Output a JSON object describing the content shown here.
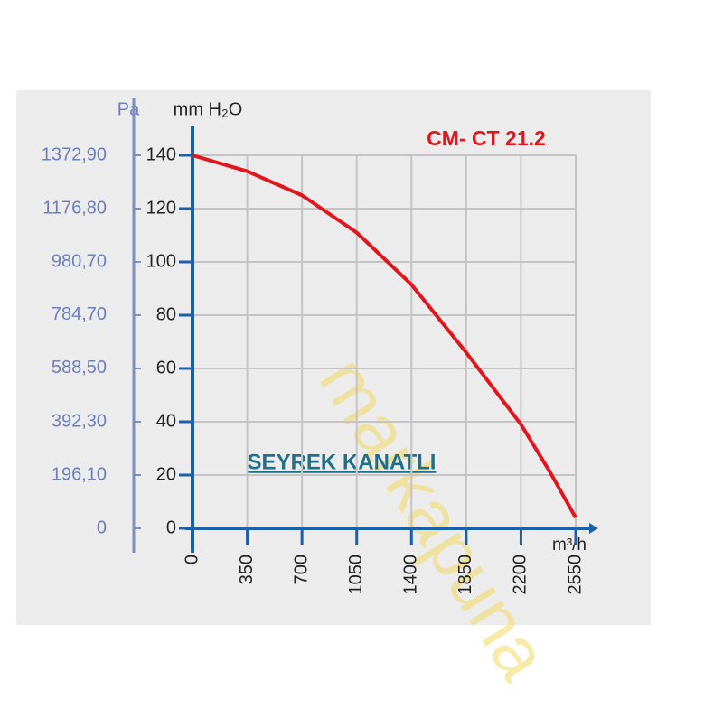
{
  "chart_data": {
    "type": "line",
    "title": "CM- CT 21.2",
    "annotation": "SEYREK KANATLI",
    "watermark": "markapuna",
    "x_label": "m³/h",
    "y_label": "mm H₂O",
    "y2_label": "Pa",
    "x": [
      0,
      350,
      700,
      1050,
      1400,
      1850,
      2200,
      2387,
      2550
    ],
    "series": [
      {
        "name": "CM- CT 21.2",
        "color": "#e0161c",
        "values": [
          140,
          134,
          125,
          111,
          91.5,
          66,
          39,
          21,
          4
        ]
      }
    ],
    "xlim": [
      0,
      2550
    ],
    "xticks": [
      0,
      350,
      700,
      1050,
      1400,
      1850,
      2200,
      2550
    ],
    "ylim": [
      0,
      140
    ],
    "yticks": [
      0,
      20,
      40,
      60,
      80,
      100,
      120,
      140
    ],
    "y2lim": [
      0,
      1372.9
    ],
    "y2ticks": [
      0,
      {
        "value": 196.1,
        "label": "196,10"
      },
      {
        "value": 392.3,
        "label": "392,30"
      },
      {
        "value": 588.5,
        "label": "588,50"
      },
      {
        "value": 784.7,
        "label": "784,70"
      },
      {
        "value": 980.7,
        "label": "980,70"
      },
      {
        "value": 1176.8,
        "label": "1176,80"
      },
      {
        "value": 1372.9,
        "label": "1372,90"
      }
    ],
    "grid": true
  }
}
